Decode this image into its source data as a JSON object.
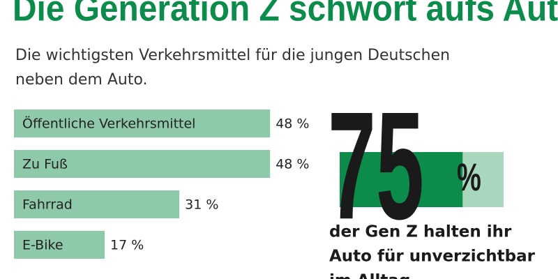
{
  "chart_data": {
    "type": "bar",
    "orientation": "horizontal",
    "title": "Die Generation Z schwört aufs Auto",
    "subtitle": [
      "Die wichtigsten Verkehrsmittel für die jungen Deutschen",
      "neben dem Auto."
    ],
    "categories": [
      "Öffentliche Verkehrsmittel",
      "Zu Fuß",
      "Fahrrad",
      "E-Bike"
    ],
    "values": [
      48,
      48,
      31,
      17
    ],
    "value_labels": [
      "48 %",
      "48 %",
      "31 %",
      "17 %"
    ],
    "color": "#8ecaa9",
    "callout": {
      "value": 75,
      "value_label": "75",
      "unit": "%",
      "color": "#0b8c4a",
      "track_color": "#a9d7bd",
      "caption": [
        "der Gen Z halten ihr",
        "Auto für unverzichtbar",
        "im Alltag"
      ]
    }
  }
}
